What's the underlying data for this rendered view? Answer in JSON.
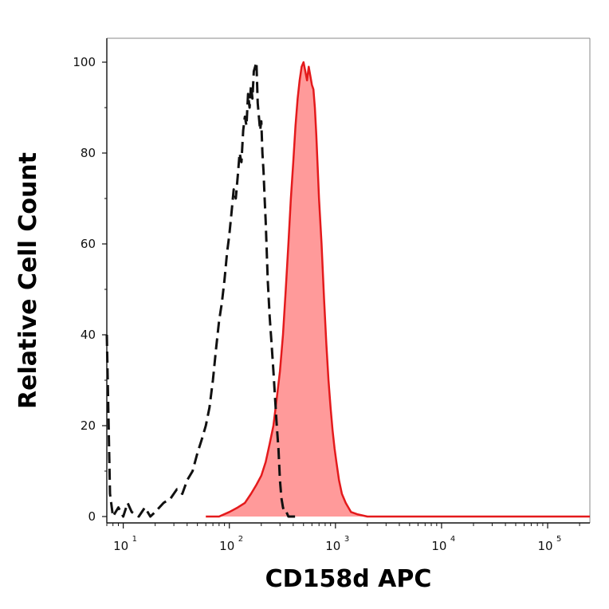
{
  "chart_data": {
    "type": "histogram-overlay",
    "xlabel": "CD158d APC",
    "ylabel": "Relative Cell Count",
    "xscale": "log",
    "xlim": [
      7,
      250000
    ],
    "ylim": [
      0,
      100
    ],
    "x_ticks": [
      {
        "base": "10",
        "exp": "1",
        "value": 10
      },
      {
        "base": "10",
        "exp": "2",
        "value": 100
      },
      {
        "base": "10",
        "exp": "3",
        "value": 1000
      },
      {
        "base": "10",
        "exp": "4",
        "value": 10000
      },
      {
        "base": "10",
        "exp": "5",
        "value": 100000
      }
    ],
    "y_ticks": [
      {
        "label": "0",
        "value": 0
      },
      {
        "label": "20",
        "value": 20
      },
      {
        "label": "40",
        "value": 40
      },
      {
        "label": "60",
        "value": 60
      },
      {
        "label": "80",
        "value": 80
      },
      {
        "label": "100",
        "value": 100
      }
    ],
    "grid": false,
    "legend": "none",
    "series": [
      {
        "style": "dashed",
        "color": "#111111",
        "fill": false,
        "x": [
          7,
          7.5,
          8,
          9,
          10,
          11,
          12,
          14,
          16,
          18,
          20,
          24,
          28,
          32,
          36,
          40,
          45,
          50,
          55,
          60,
          65,
          70,
          75,
          80,
          85,
          90,
          95,
          100,
          105,
          110,
          115,
          120,
          125,
          130,
          135,
          140,
          145,
          150,
          155,
          160,
          165,
          170,
          175,
          180,
          185,
          190,
          195,
          200,
          205,
          210,
          215,
          220,
          230,
          240,
          250,
          260,
          270,
          280,
          290,
          300,
          310,
          320,
          330,
          345,
          360,
          380,
          400,
          430
        ],
        "y": [
          40,
          5,
          0,
          2,
          0,
          3,
          1,
          0,
          2,
          0,
          1,
          3,
          4,
          6,
          5,
          8,
          10,
          14,
          17,
          20,
          24,
          30,
          37,
          43,
          47,
          52,
          58,
          62,
          67,
          72,
          70,
          75,
          80,
          78,
          85,
          88,
          86,
          93,
          90,
          95,
          92,
          98,
          99,
          100,
          91,
          88,
          85,
          87,
          80,
          76,
          70,
          65,
          52,
          44,
          38,
          32,
          26,
          20,
          15,
          8,
          4,
          2,
          1,
          1,
          0,
          0,
          0,
          0
        ]
      },
      {
        "style": "solid",
        "color": "#e41a1c",
        "fill": true,
        "fill_color": "#ff9a9a",
        "x": [
          60,
          80,
          100,
          120,
          140,
          160,
          180,
          200,
          220,
          240,
          260,
          280,
          300,
          320,
          340,
          360,
          380,
          400,
          420,
          440,
          460,
          480,
          500,
          520,
          540,
          560,
          580,
          600,
          620,
          640,
          660,
          680,
          700,
          740,
          780,
          820,
          860,
          900,
          940,
          980,
          1020,
          1080,
          1150,
          1250,
          1400,
          1600,
          2000,
          5000,
          20000,
          100000,
          250000
        ],
        "y": [
          0,
          0,
          1,
          2,
          3,
          5,
          7,
          9,
          12,
          16,
          20,
          26,
          32,
          40,
          50,
          60,
          70,
          78,
          86,
          92,
          96,
          99,
          100,
          98,
          96,
          99,
          97,
          95,
          94,
          90,
          84,
          77,
          70,
          60,
          48,
          38,
          30,
          24,
          19,
          15,
          12,
          8,
          5,
          3,
          1,
          0.5,
          0,
          0,
          0,
          0,
          0
        ]
      }
    ]
  }
}
